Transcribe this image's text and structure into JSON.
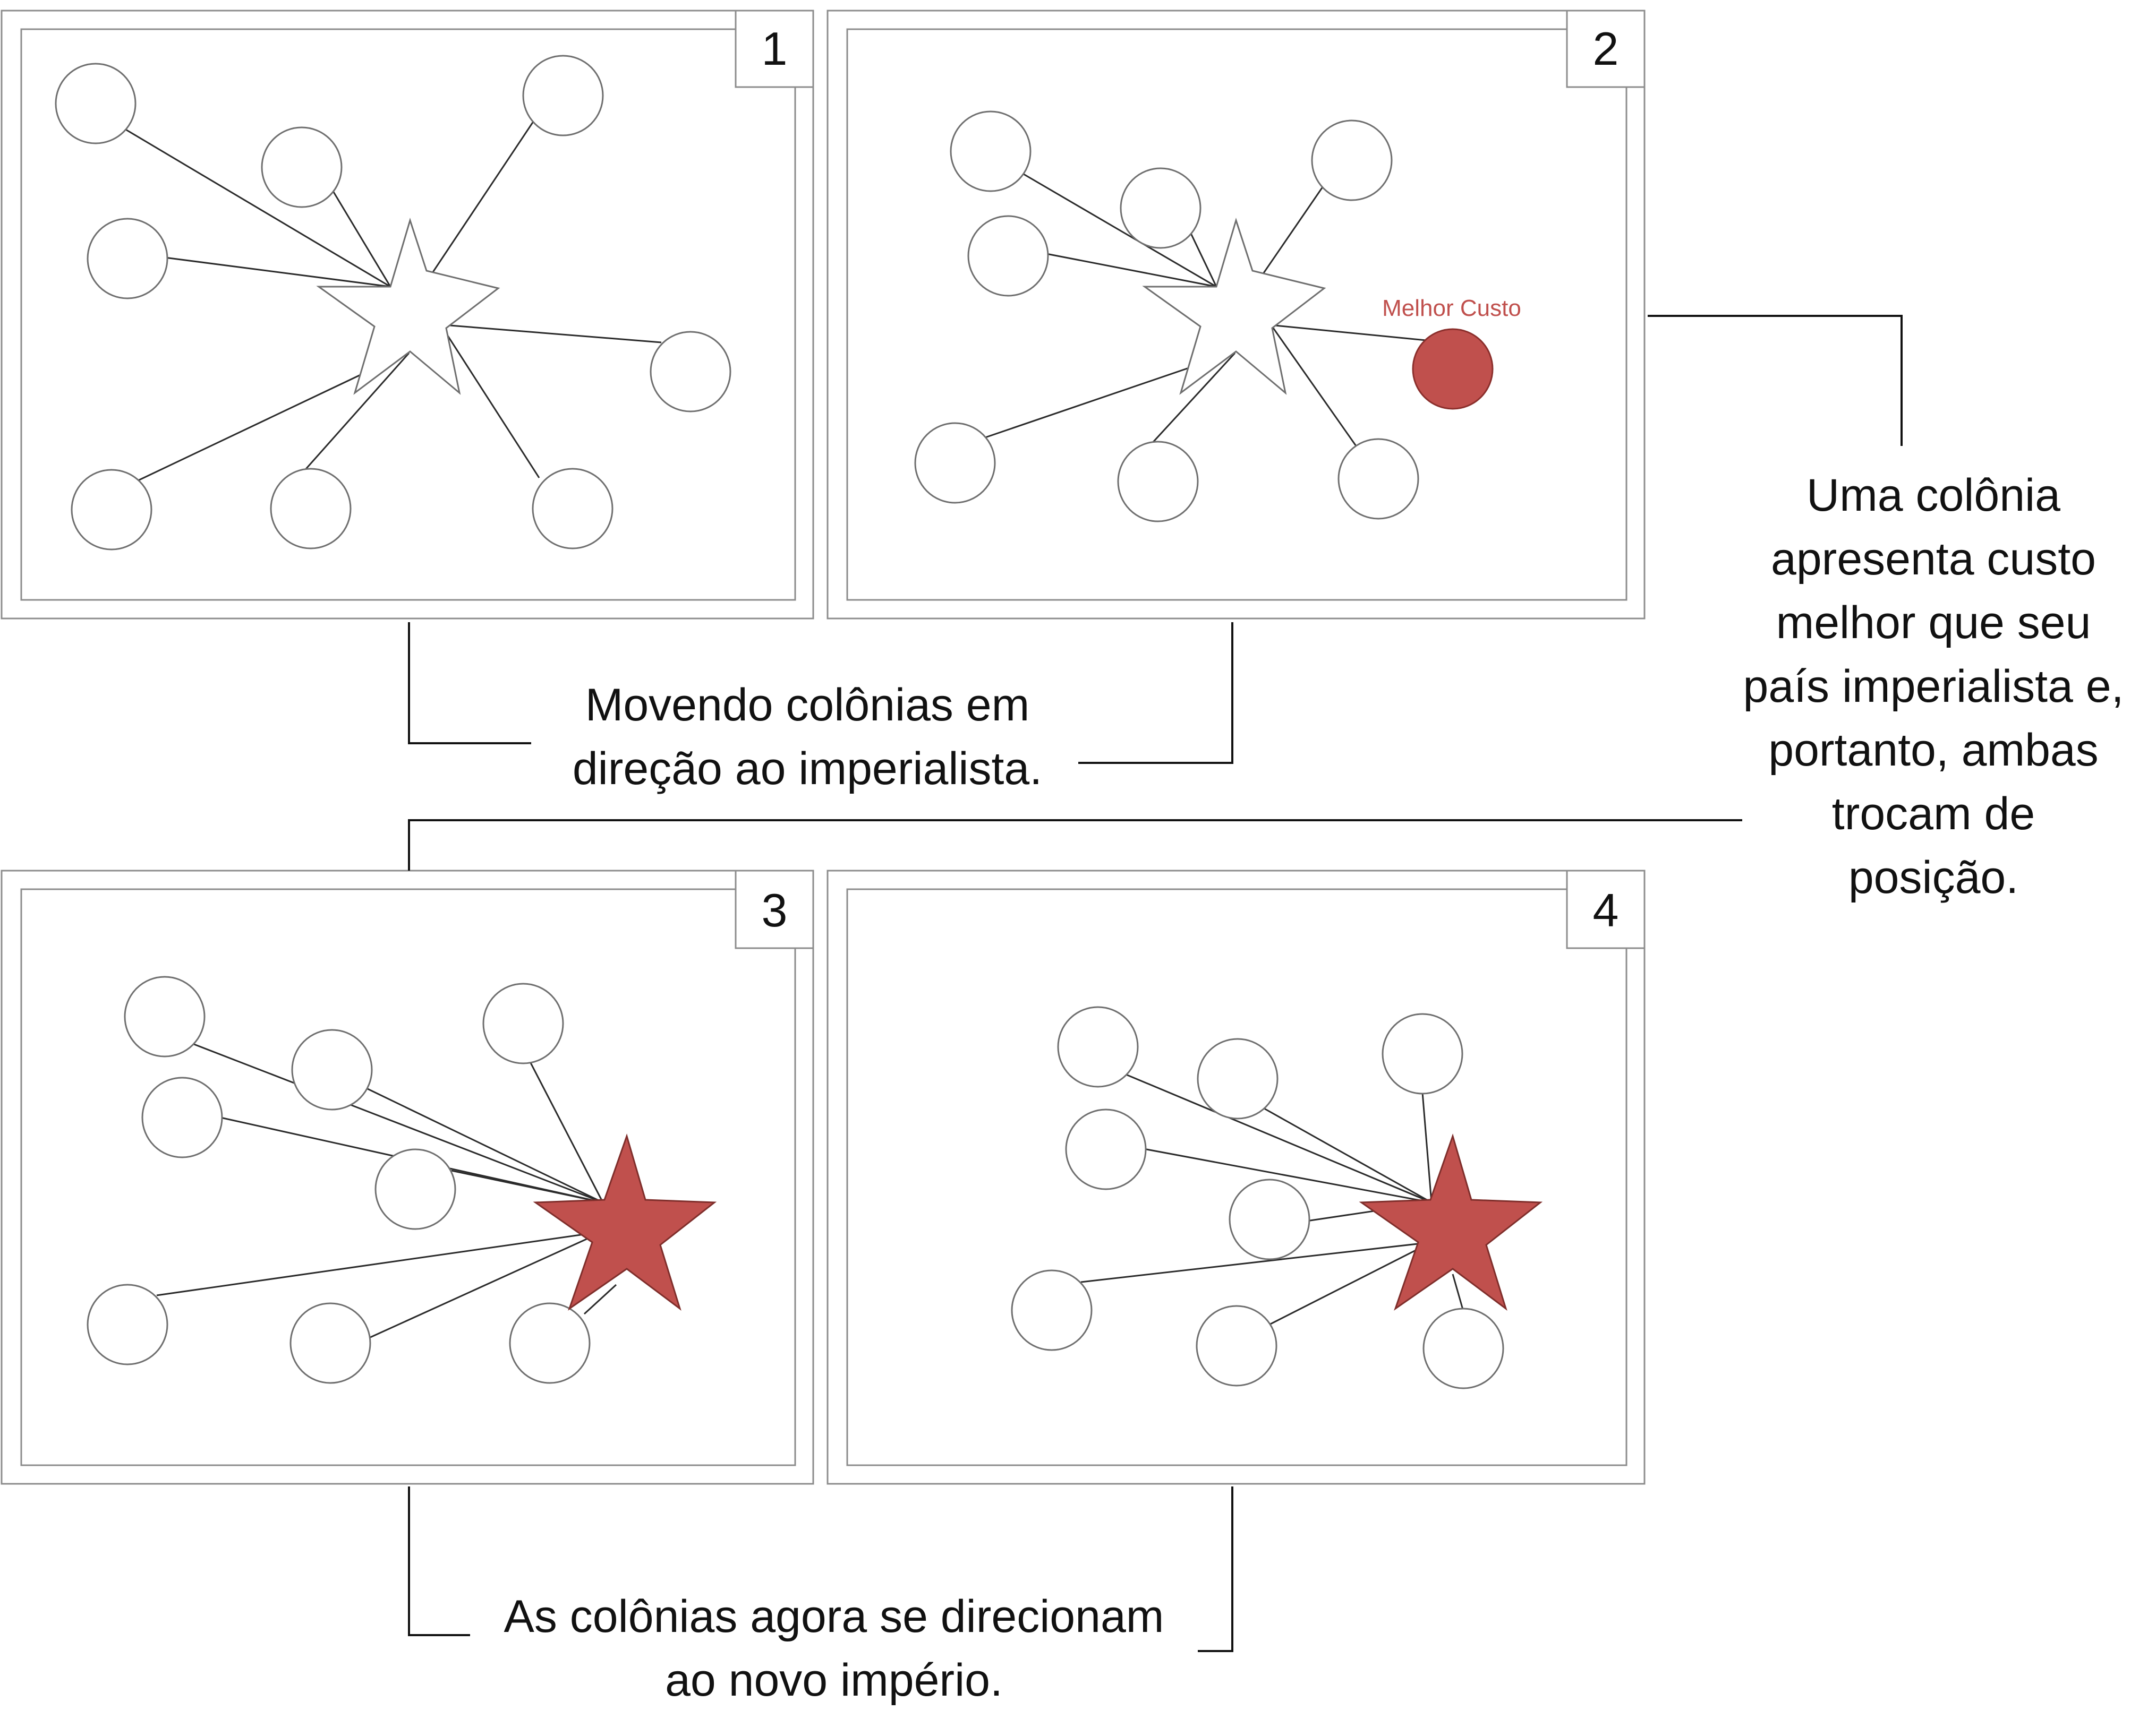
{
  "panels": [
    {
      "number": "1"
    },
    {
      "number": "2",
      "best_label": "Melhor Custo"
    },
    {
      "number": "3"
    },
    {
      "number": "4"
    }
  ],
  "captions": {
    "moving": [
      "Movendo colônias em",
      "direção ao imperialista."
    ],
    "swap": [
      "Uma colônia",
      "apresenta custo",
      "melhor que seu",
      "país imperialista e,",
      "portanto, ambas",
      "trocam de",
      "posição."
    ],
    "new_empire": [
      "As colônias agora se direcionam",
      "ao novo império."
    ]
  },
  "colors": {
    "highlight": "#c0504d",
    "outline": "#8c8c8c",
    "line": "#2b2b2b"
  },
  "icons": {
    "imperialist": "star-icon",
    "colony": "circle-icon"
  }
}
